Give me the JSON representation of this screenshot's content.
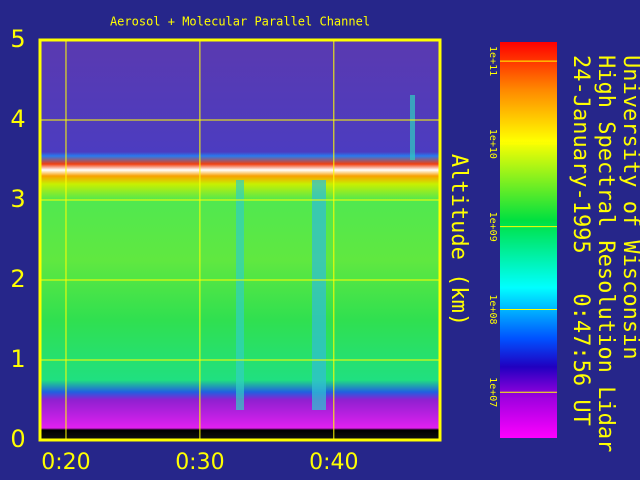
{
  "chart_data": {
    "type": "heatmap",
    "title": "Aerosol + Molecular Parallel Channel",
    "ylabel": "Altitude (km)",
    "side_texts": [
      "University of Wisconsin",
      "High Spectral Resolution Lidar",
      "24-January-1995   0:47:56 UT"
    ],
    "xlim": [
      18.06,
      47.93
    ],
    "xticks": [
      {
        "value": 20,
        "label": "0:20"
      },
      {
        "value": 30,
        "label": "0:30"
      },
      {
        "value": 40,
        "label": "0:40"
      }
    ],
    "ylim": [
      0,
      5
    ],
    "yticks": [
      0,
      1,
      2,
      3,
      4,
      5
    ],
    "grid": true,
    "colorbar": {
      "log": true,
      "lim": [
        2800000,
        170000000000
      ],
      "ticks": [
        {
          "value": 100000000000,
          "label": "1e+11"
        },
        {
          "value": 10000000000,
          "label": "1e+10"
        },
        {
          "value": 1000000000,
          "label": "1e+09"
        },
        {
          "value": 100000000,
          "label": "1e+08"
        },
        {
          "value": 10000000,
          "label": "1e+07"
        }
      ]
    }
  }
}
